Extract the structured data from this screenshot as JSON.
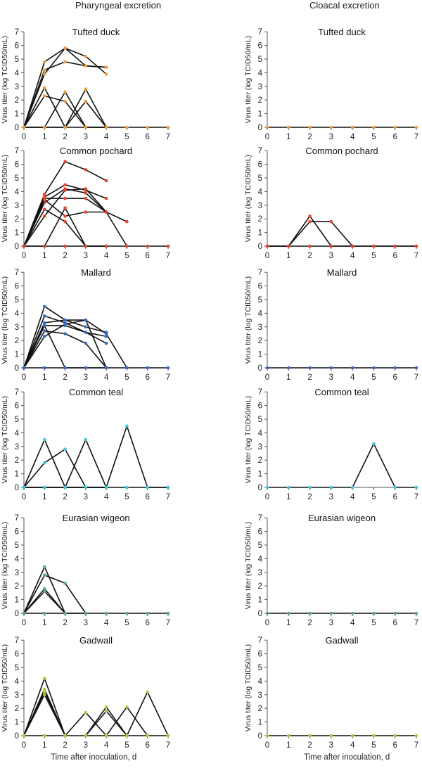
{
  "column_titles": [
    "Pharyngeal excretion",
    "Cloacal excretion"
  ],
  "x_axis_label": "Time after inoculation, d",
  "y_axis_label": "Virus titer (log TCID50/mL)",
  "chart_data": [
    {
      "type": "line",
      "column": "Pharyngeal excretion",
      "title": "Tufted duck",
      "ylim": [
        0,
        7
      ],
      "xlim": [
        0,
        7
      ],
      "x_ticks": [
        0,
        1,
        2,
        3,
        4,
        5,
        6,
        7
      ],
      "y_ticks": [
        0,
        1,
        2,
        3,
        4,
        5,
        6,
        7
      ],
      "marker_color": "#f39c3d",
      "series": [
        {
          "x": [
            0,
            1,
            2,
            3,
            4
          ],
          "y": [
            0,
            4.8,
            5.8,
            5.2,
            3.9
          ]
        },
        {
          "x": [
            0,
            1,
            2,
            3,
            4
          ],
          "y": [
            0,
            4.2,
            4.8,
            4.5,
            4.4
          ]
        },
        {
          "x": [
            0,
            1,
            2,
            3,
            4
          ],
          "y": [
            0,
            3.9,
            5.8,
            4.5,
            4.4
          ]
        },
        {
          "x": [
            0,
            1,
            2,
            3,
            4
          ],
          "y": [
            0,
            2.9,
            0,
            2.8,
            0
          ]
        },
        {
          "x": [
            0,
            1,
            2,
            3,
            4
          ],
          "y": [
            0,
            2.3,
            1.9,
            0,
            0
          ]
        },
        {
          "x": [
            0,
            1,
            2,
            3,
            4
          ],
          "y": [
            0,
            0,
            2.6,
            0,
            0
          ]
        },
        {
          "x": [
            0,
            1,
            2,
            3,
            4
          ],
          "y": [
            0,
            0,
            0,
            1.9,
            0
          ]
        },
        {
          "x": [
            0,
            1,
            2,
            3,
            4,
            5,
            6,
            7
          ],
          "y": [
            0,
            0,
            0,
            0,
            0,
            0,
            0,
            0
          ]
        }
      ]
    },
    {
      "type": "line",
      "column": "Cloacal excretion",
      "title": "Tufted duck",
      "ylim": [
        0,
        7
      ],
      "xlim": [
        0,
        7
      ],
      "x_ticks": [
        0,
        1,
        2,
        3,
        4,
        5,
        6,
        7
      ],
      "y_ticks": [
        0,
        1,
        2,
        3,
        4,
        5,
        6,
        7
      ],
      "marker_color": "#f39c3d",
      "series": [
        {
          "x": [
            0,
            1,
            2,
            3,
            4,
            5,
            6,
            7
          ],
          "y": [
            0,
            0,
            0,
            0,
            0,
            0,
            0,
            0
          ]
        }
      ]
    },
    {
      "type": "line",
      "column": "Pharyngeal excretion",
      "title": "Common pochard",
      "ylim": [
        0,
        7
      ],
      "xlim": [
        0,
        7
      ],
      "x_ticks": [
        0,
        1,
        2,
        3,
        4,
        5,
        6,
        7
      ],
      "y_ticks": [
        0,
        1,
        2,
        3,
        4,
        5,
        6,
        7
      ],
      "marker_color": "#e8432e",
      "series": [
        {
          "x": [
            0,
            1,
            2,
            3,
            4
          ],
          "y": [
            0,
            3.8,
            6.2,
            5.6,
            4.8
          ]
        },
        {
          "x": [
            0,
            1,
            2,
            3,
            4
          ],
          "y": [
            0,
            3.6,
            4.5,
            4.1,
            3.5
          ]
        },
        {
          "x": [
            0,
            1,
            2,
            3,
            4,
            5
          ],
          "y": [
            0,
            3.2,
            4.2,
            3.9,
            2.5,
            1.8
          ]
        },
        {
          "x": [
            0,
            1,
            2,
            3,
            4,
            5
          ],
          "y": [
            0,
            2.2,
            4.1,
            4.2,
            2.5,
            0
          ]
        },
        {
          "x": [
            0,
            1,
            2,
            3,
            4
          ],
          "y": [
            0,
            3.5,
            3.5,
            3.5,
            2.5
          ]
        },
        {
          "x": [
            0,
            1,
            2,
            3,
            4
          ],
          "y": [
            0,
            3.4,
            2.2,
            2.5,
            2.5
          ]
        },
        {
          "x": [
            0,
            1,
            2,
            3,
            4
          ],
          "y": [
            0,
            2.7,
            1.8,
            0,
            0
          ]
        },
        {
          "x": [
            0,
            1,
            2,
            3,
            4
          ],
          "y": [
            0,
            0,
            2.8,
            0,
            0
          ]
        },
        {
          "x": [
            0,
            1,
            2,
            3,
            4,
            5,
            6,
            7
          ],
          "y": [
            0,
            0,
            0,
            0,
            0,
            0,
            0,
            0
          ]
        }
      ]
    },
    {
      "type": "line",
      "column": "Cloacal excretion",
      "title": "Common pochard",
      "ylim": [
        0,
        7
      ],
      "xlim": [
        0,
        7
      ],
      "x_ticks": [
        0,
        1,
        2,
        3,
        4,
        5,
        6,
        7
      ],
      "y_ticks": [
        0,
        1,
        2,
        3,
        4,
        5,
        6,
        7
      ],
      "marker_color": "#e8432e",
      "series": [
        {
          "x": [
            0,
            1,
            2,
            3,
            4,
            5,
            6,
            7
          ],
          "y": [
            0,
            0,
            2.2,
            0,
            0,
            0,
            0,
            0
          ]
        },
        {
          "x": [
            0,
            1,
            2,
            3,
            4
          ],
          "y": [
            0,
            0,
            1.8,
            1.8,
            0
          ]
        },
        {
          "x": [
            0,
            1,
            2,
            3,
            4,
            5,
            6,
            7
          ],
          "y": [
            0,
            0,
            0,
            0,
            0,
            0,
            0,
            0
          ]
        }
      ]
    },
    {
      "type": "line",
      "column": "Pharyngeal excretion",
      "title": "Mallard",
      "ylim": [
        0,
        7
      ],
      "xlim": [
        0,
        7
      ],
      "x_ticks": [
        0,
        1,
        2,
        3,
        4,
        5,
        6,
        7
      ],
      "y_ticks": [
        0,
        1,
        2,
        3,
        4,
        5,
        6,
        7
      ],
      "marker_color": "#3a6bc4",
      "series": [
        {
          "x": [
            0,
            1,
            2,
            3,
            4,
            5
          ],
          "y": [
            0,
            4.5,
            3.5,
            3.5,
            2.5,
            0
          ]
        },
        {
          "x": [
            0,
            1,
            2,
            3,
            4
          ],
          "y": [
            0,
            3.8,
            3.3,
            2.6,
            1.8
          ]
        },
        {
          "x": [
            0,
            1,
            2,
            3,
            4
          ],
          "y": [
            0,
            3.3,
            3.5,
            3.0,
            2.6
          ]
        },
        {
          "x": [
            0,
            1,
            2,
            3,
            4
          ],
          "y": [
            0,
            3.1,
            3.1,
            2.6,
            2.3
          ]
        },
        {
          "x": [
            0,
            1,
            2,
            3,
            4
          ],
          "y": [
            0,
            2.7,
            2.5,
            1.8,
            0
          ]
        },
        {
          "x": [
            0,
            1,
            2,
            3,
            4
          ],
          "y": [
            0,
            2.3,
            3.2,
            3.5,
            0
          ]
        },
        {
          "x": [
            0,
            1,
            2,
            3,
            4
          ],
          "y": [
            0,
            3.1,
            0,
            0,
            0
          ]
        },
        {
          "x": [
            0,
            1,
            2,
            3,
            4,
            5,
            6,
            7
          ],
          "y": [
            0,
            0,
            0,
            0,
            0,
            0,
            0,
            0
          ]
        }
      ]
    },
    {
      "type": "line",
      "column": "Cloacal excretion",
      "title": "Mallard",
      "ylim": [
        0,
        7
      ],
      "xlim": [
        0,
        7
      ],
      "x_ticks": [
        0,
        1,
        2,
        3,
        4,
        5,
        6,
        7
      ],
      "y_ticks": [
        0,
        1,
        2,
        3,
        4,
        5,
        6,
        7
      ],
      "marker_color": "#3a6bc4",
      "series": [
        {
          "x": [
            0,
            1,
            2,
            3,
            4,
            5,
            6,
            7
          ],
          "y": [
            0,
            0,
            0,
            0,
            0,
            0,
            0,
            0
          ]
        }
      ]
    },
    {
      "type": "line",
      "column": "Pharyngeal excretion",
      "title": "Common teal",
      "ylim": [
        0,
        7
      ],
      "xlim": [
        0,
        7
      ],
      "x_ticks": [
        0,
        1,
        2,
        3,
        4,
        5,
        6,
        7
      ],
      "y_ticks": [
        0,
        1,
        2,
        3,
        4,
        5,
        6,
        7
      ],
      "marker_color": "#3fc6e0",
      "series": [
        {
          "x": [
            0,
            1,
            2,
            3,
            4
          ],
          "y": [
            0,
            3.5,
            0,
            0,
            0
          ]
        },
        {
          "x": [
            0,
            1,
            2,
            3,
            4
          ],
          "y": [
            0,
            1.8,
            2.8,
            0,
            0
          ]
        },
        {
          "x": [
            0,
            1,
            2,
            3,
            4
          ],
          "y": [
            0,
            0,
            0,
            3.5,
            0
          ]
        },
        {
          "x": [
            0,
            1,
            2,
            3,
            4,
            5,
            6,
            7
          ],
          "y": [
            0,
            0,
            0,
            0,
            0,
            4.5,
            0,
            0
          ]
        },
        {
          "x": [
            0,
            1,
            2,
            3,
            4,
            5,
            6,
            7
          ],
          "y": [
            0,
            0,
            0,
            0,
            0,
            0,
            0,
            0
          ]
        }
      ]
    },
    {
      "type": "line",
      "column": "Cloacal excretion",
      "title": "Common teal",
      "ylim": [
        0,
        7
      ],
      "xlim": [
        0,
        7
      ],
      "x_ticks": [
        0,
        1,
        2,
        3,
        4,
        5,
        6,
        7
      ],
      "y_ticks": [
        0,
        1,
        2,
        3,
        4,
        5,
        6,
        7
      ],
      "marker_color": "#3fc6e0",
      "series": [
        {
          "x": [
            0,
            1,
            2,
            3,
            4,
            5,
            6,
            7
          ],
          "y": [
            0,
            0,
            0,
            0,
            0,
            3.2,
            0,
            0
          ]
        }
      ]
    },
    {
      "type": "line",
      "column": "Pharyngeal excretion",
      "title": "Eurasian wigeon",
      "ylim": [
        0,
        7
      ],
      "xlim": [
        0,
        7
      ],
      "x_ticks": [
        0,
        1,
        2,
        3,
        4,
        5,
        6,
        7
      ],
      "y_ticks": [
        0,
        1,
        2,
        3,
        4,
        5,
        6,
        7
      ],
      "marker_color": "#5aa59a",
      "series": [
        {
          "x": [
            0,
            1,
            2,
            3
          ],
          "y": [
            0,
            3.4,
            0,
            0
          ]
        },
        {
          "x": [
            0,
            1,
            2,
            3
          ],
          "y": [
            0,
            2.8,
            2.2,
            0
          ]
        },
        {
          "x": [
            0,
            1,
            2
          ],
          "y": [
            0,
            1.8,
            0
          ]
        },
        {
          "x": [
            0,
            1,
            2
          ],
          "y": [
            0,
            1.6,
            0
          ]
        },
        {
          "x": [
            0,
            1,
            2,
            3,
            4,
            5,
            6,
            7
          ],
          "y": [
            0,
            0,
            0,
            0,
            0,
            0,
            0,
            0
          ]
        }
      ]
    },
    {
      "type": "line",
      "column": "Cloacal excretion",
      "title": "Eurasian wigeon",
      "ylim": [
        0,
        7
      ],
      "xlim": [
        0,
        7
      ],
      "x_ticks": [
        0,
        1,
        2,
        3,
        4,
        5,
        6,
        7
      ],
      "y_ticks": [
        0,
        1,
        2,
        3,
        4,
        5,
        6,
        7
      ],
      "marker_color": "#5aa59a",
      "series": [
        {
          "x": [
            0,
            1,
            2,
            3,
            4,
            5,
            6,
            7
          ],
          "y": [
            0,
            0,
            0,
            0,
            0,
            0,
            0,
            0
          ]
        }
      ]
    },
    {
      "type": "line",
      "column": "Pharyngeal excretion",
      "title": "Gadwall",
      "ylim": [
        0,
        7
      ],
      "xlim": [
        0,
        7
      ],
      "x_ticks": [
        0,
        1,
        2,
        3,
        4,
        5,
        6,
        7
      ],
      "y_ticks": [
        0,
        1,
        2,
        3,
        4,
        5,
        6,
        7
      ],
      "marker_color": "#b8c43a",
      "series": [
        {
          "x": [
            0,
            1,
            2
          ],
          "y": [
            0,
            4.2,
            0
          ]
        },
        {
          "x": [
            0,
            1,
            2
          ],
          "y": [
            0,
            3.4,
            0
          ]
        },
        {
          "x": [
            0,
            1,
            2
          ],
          "y": [
            0,
            3.2,
            0
          ]
        },
        {
          "x": [
            0,
            1,
            2
          ],
          "y": [
            0,
            3.0,
            0
          ]
        },
        {
          "x": [
            2,
            3,
            4
          ],
          "y": [
            0,
            1.7,
            0
          ]
        },
        {
          "x": [
            3,
            4,
            5
          ],
          "y": [
            0,
            2.1,
            0
          ]
        },
        {
          "x": [
            3,
            4,
            5
          ],
          "y": [
            0,
            1.8,
            0
          ]
        },
        {
          "x": [
            4,
            5,
            6
          ],
          "y": [
            0,
            2.1,
            0
          ]
        },
        {
          "x": [
            5,
            6,
            7
          ],
          "y": [
            0,
            3.2,
            0
          ]
        },
        {
          "x": [
            0,
            1,
            2,
            3,
            4,
            5,
            6,
            7
          ],
          "y": [
            0,
            0,
            0,
            0,
            0,
            0,
            0,
            0
          ]
        }
      ]
    },
    {
      "type": "line",
      "column": "Cloacal excretion",
      "title": "Gadwall",
      "ylim": [
        0,
        7
      ],
      "xlim": [
        0,
        7
      ],
      "x_ticks": [
        0,
        1,
        2,
        3,
        4,
        5,
        6,
        7
      ],
      "y_ticks": [
        0,
        1,
        2,
        3,
        4,
        5,
        6,
        7
      ],
      "marker_color": "#b8c43a",
      "series": [
        {
          "x": [
            0,
            1,
            2,
            3,
            4,
            5,
            6,
            7
          ],
          "y": [
            0,
            0,
            0,
            0,
            0,
            0,
            0,
            0
          ]
        }
      ]
    }
  ]
}
